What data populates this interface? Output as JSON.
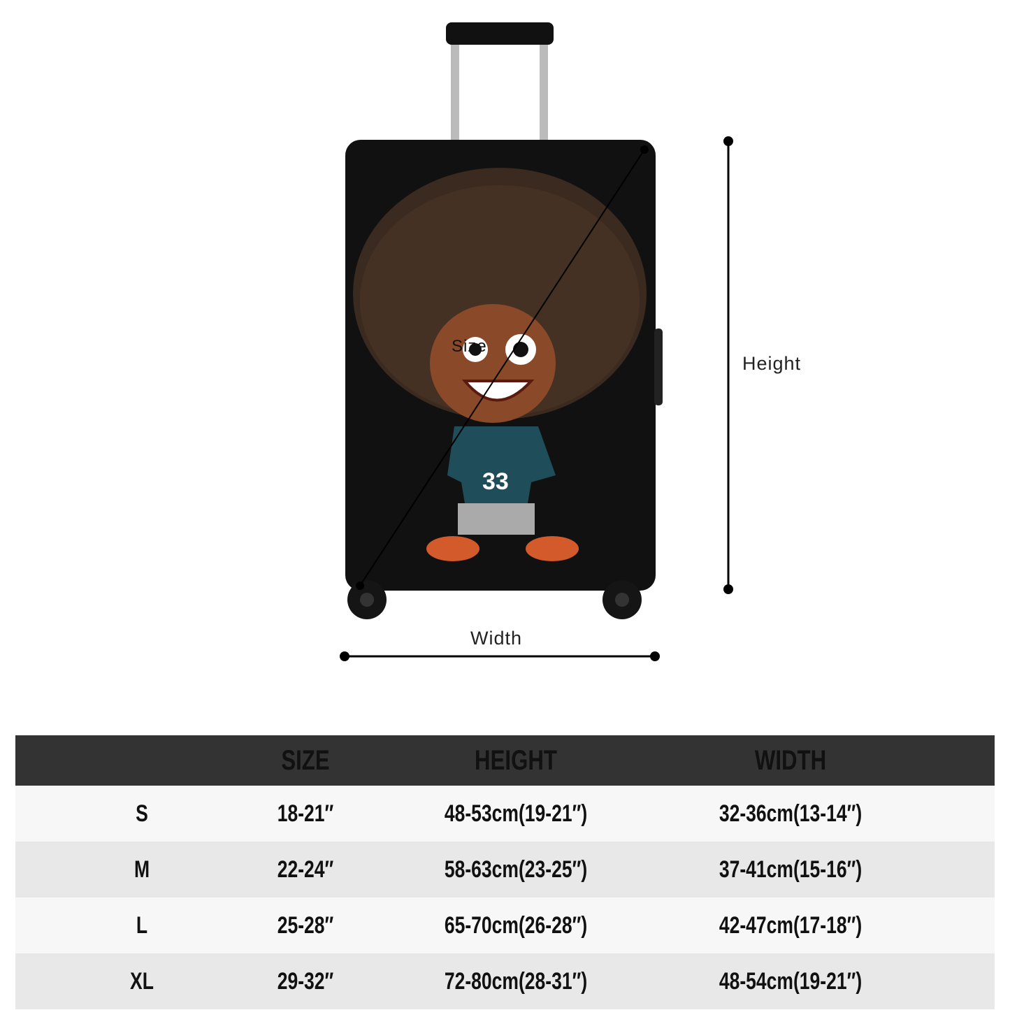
{
  "labels": {
    "height": "Height",
    "width": "Width",
    "size": "Size"
  },
  "colors": {
    "header_bg": "#333333",
    "row_light": "#f7f7f7",
    "row_dark": "#e8e8e8",
    "suitcase": "#111111"
  },
  "table": {
    "headers": [
      "",
      "SIZE",
      "HEIGHT",
      "WIDTH"
    ],
    "rows": [
      [
        "S",
        "18-21″",
        "48-53cm(19-21″)",
        "32-36cm(13-14″)"
      ],
      [
        "M",
        "22-24″",
        "58-63cm(23-25″)",
        "37-41cm(15-16″)"
      ],
      [
        "L",
        "25-28″",
        "65-70cm(26-28″)",
        "42-47cm(17-18″)"
      ],
      [
        "XL",
        "29-32″",
        "72-80cm(28-31″)",
        "48-54cm(19-21″)"
      ]
    ]
  }
}
